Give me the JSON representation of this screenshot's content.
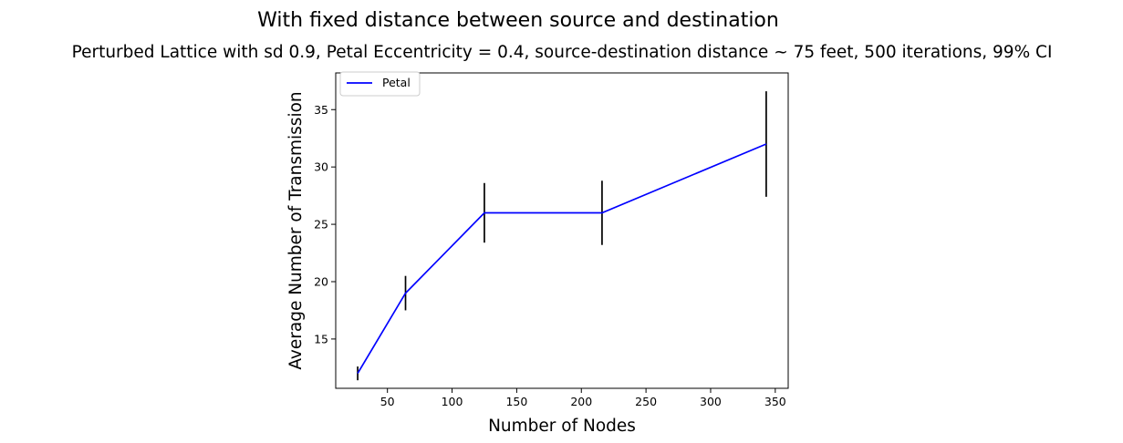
{
  "chart_data": {
    "type": "line",
    "suptitle": "With fixed distance between source and destination",
    "title": "Perturbed Lattice with sd 0.9, Petal Eccentricity = 0.4, source-destination distance ~ 75 feet, 500 iterations, 99% CI",
    "xlabel": "Number of Nodes",
    "ylabel": "Average Number of Transmission",
    "xlim": [
      10,
      360
    ],
    "ylim": [
      10.7,
      38.2
    ],
    "xticks": [
      50,
      100,
      150,
      200,
      250,
      300,
      350
    ],
    "yticks": [
      15,
      20,
      25,
      30,
      35
    ],
    "grid": false,
    "legend_position": "top-left",
    "series": [
      {
        "name": "Petal",
        "color": "#0000ff",
        "x": [
          27,
          64,
          125,
          216,
          343
        ],
        "y": [
          12.0,
          19.0,
          26.0,
          26.0,
          32.0
        ],
        "error": [
          0.6,
          1.5,
          2.6,
          2.8,
          4.6
        ]
      }
    ],
    "errorbar_color": "#000000"
  }
}
